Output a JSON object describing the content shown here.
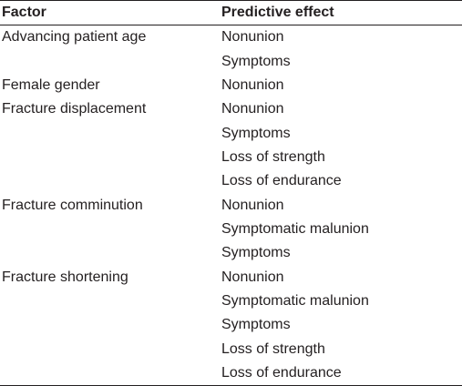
{
  "table": {
    "headers": [
      "Factor",
      "Predictive effect"
    ],
    "groups": [
      {
        "factor": "Advancing patient age",
        "effects": [
          "Nonunion",
          "Symptoms"
        ]
      },
      {
        "factor": "Female gender",
        "effects": [
          "Nonunion"
        ]
      },
      {
        "factor": "Fracture displacement",
        "effects": [
          "Nonunion",
          "Symptoms",
          "Loss of strength",
          "Loss of endurance"
        ]
      },
      {
        "factor": "Fracture comminution",
        "effects": [
          "Nonunion",
          "Symptomatic malunion",
          "Symptoms"
        ]
      },
      {
        "factor": "Fracture shortening",
        "effects": [
          "Nonunion",
          "Symptomatic malunion",
          "Symptoms",
          "Loss of strength",
          "Loss of endurance"
        ]
      }
    ]
  },
  "colors": {
    "text": "#231f20",
    "rule": "#231f20",
    "background": "#ffffff"
  }
}
